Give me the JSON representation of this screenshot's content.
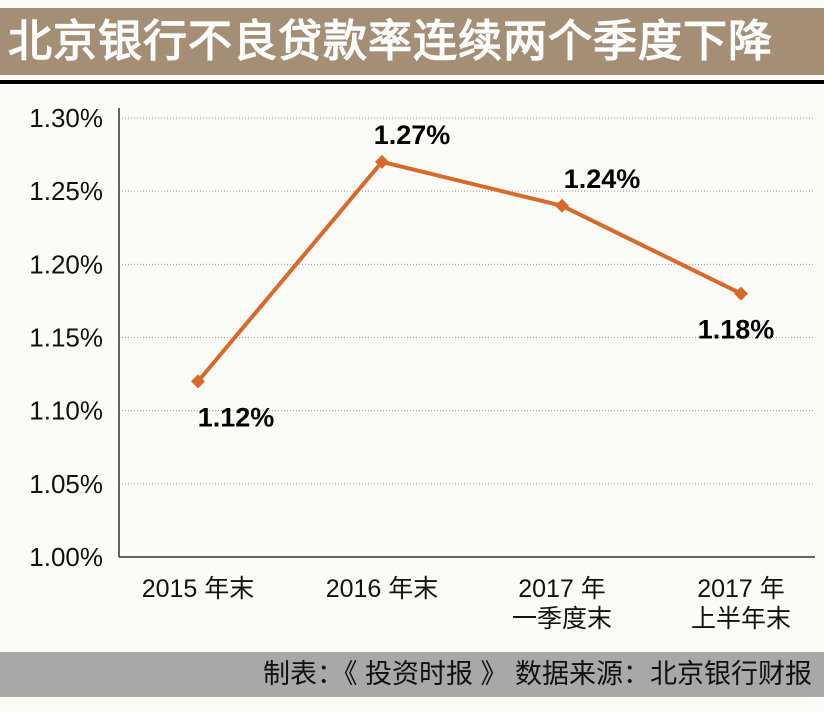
{
  "title": "北京银行不良贷款率连续两个季度下降",
  "footer": "制表：《 投资时报 》  数据来源：北京银行财报",
  "chart_data": {
    "type": "line",
    "categories": [
      [
        "2015 年末"
      ],
      [
        "2016 年末"
      ],
      [
        "2017 年",
        "一季度末"
      ],
      [
        "2017 年",
        "上半年末"
      ]
    ],
    "values": [
      1.12,
      1.27,
      1.24,
      1.18
    ],
    "data_labels": [
      "1.12%",
      "1.27%",
      "1.24%",
      "1.18%"
    ],
    "yticks": [
      "1.00%",
      "1.05%",
      "1.10%",
      "1.15%",
      "1.20%",
      "1.25%",
      "1.30%"
    ],
    "ylim": [
      1.0,
      1.3
    ],
    "grid": "horizontal dotted",
    "line_color": "#d9692a",
    "marker": "diamond"
  }
}
